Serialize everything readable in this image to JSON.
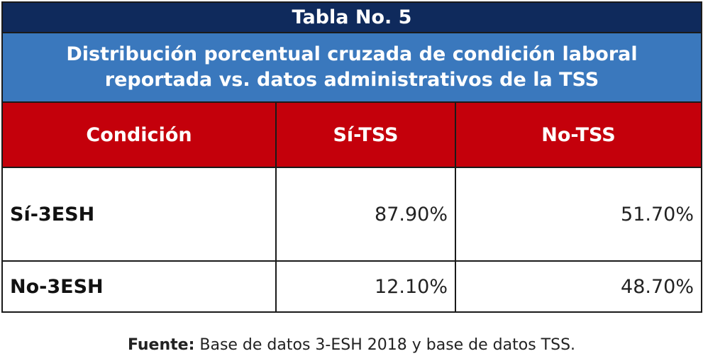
{
  "table": {
    "title": "Tabla No. 5",
    "subtitle_lines": [
      "Distribución porcentual cruzada de condición laboral",
      "reportada vs. datos administrativos de la TSS"
    ],
    "headers": [
      "Condición",
      "Sí-TSS",
      "No-TSS"
    ],
    "rows": [
      {
        "label": "Sí-3ESH",
        "si_tss": "87.90%",
        "no_tss": "51.70%"
      },
      {
        "label": "No-3ESH",
        "si_tss": "12.10%",
        "no_tss": "48.70%"
      }
    ]
  },
  "source": {
    "label": "Fuente:",
    "text": " Base de datos 3-ESH 2018 y base de datos TSS."
  },
  "colors": {
    "title_bg": "#0f2a5c",
    "subtitle_bg": "#3a78bd",
    "header_bg": "#c4000b"
  }
}
